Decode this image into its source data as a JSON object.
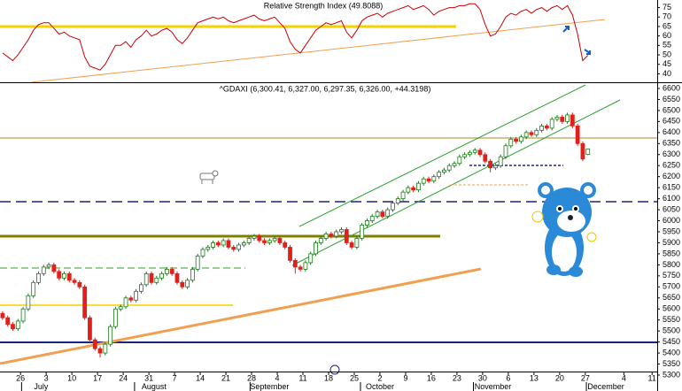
{
  "chart_data": [
    {
      "type": "line",
      "title": "Relative Strength Index (49.8088)",
      "xlim": [
        0,
        128
      ],
      "ylim": [
        36,
        79
      ],
      "yticks": [
        40,
        45,
        50,
        55,
        60,
        65,
        70,
        75
      ],
      "color": "#cc0000",
      "values": [
        51,
        49,
        47,
        50,
        54,
        58,
        63,
        66,
        67,
        67,
        64,
        61,
        62,
        60,
        59,
        58,
        49,
        44,
        43,
        42,
        45,
        50,
        55,
        55,
        57,
        54,
        58,
        60,
        63,
        60,
        61,
        63,
        64,
        62,
        58,
        56,
        59,
        63,
        67,
        68,
        69,
        70,
        69,
        70,
        68,
        67,
        68,
        69,
        70,
        71,
        69,
        68,
        69,
        70,
        67,
        64,
        57,
        53,
        51,
        55,
        59,
        63,
        65,
        67,
        66,
        67,
        68,
        62,
        59,
        63,
        68,
        70,
        71,
        72,
        70,
        72,
        73,
        74,
        75,
        76,
        74,
        75,
        76,
        74,
        71,
        73,
        74,
        75,
        75,
        76,
        76,
        77,
        77,
        74,
        66,
        60,
        61,
        65,
        70,
        72,
        71,
        73,
        74,
        72,
        74,
        75,
        73,
        75,
        76,
        74,
        76,
        71,
        61,
        47,
        49.8088
      ]
    },
    {
      "type": "candlestick",
      "title": "^GDAXI (6,300.41, 6,327.00, 6,297.35, 6,326.00, +44.3198)",
      "xlim": [
        0,
        128
      ],
      "ylim": [
        5276,
        6620
      ],
      "yticks": [
        6600,
        6550,
        6500,
        6450,
        6400,
        6350,
        6300,
        6250,
        6200,
        6150,
        6100,
        6050,
        6000,
        5950,
        5900,
        5850,
        5800,
        5750,
        5700,
        5650,
        5600,
        5550,
        5500,
        5450,
        5400,
        5350,
        5300
      ],
      "up_color": "#1d7a1d",
      "down_color": "#e0201b",
      "xticks": [
        {
          "value": 4,
          "label": "26"
        },
        {
          "value": 9,
          "label": "3"
        },
        {
          "value": 14,
          "label": "10"
        },
        {
          "value": 19,
          "label": "17"
        },
        {
          "value": 24,
          "label": "24"
        },
        {
          "value": 29,
          "label": "31"
        },
        {
          "value": 34,
          "label": "7"
        },
        {
          "value": 39,
          "label": "14"
        },
        {
          "value": 44,
          "label": "21"
        },
        {
          "value": 49,
          "label": "28"
        },
        {
          "value": 54,
          "label": "4"
        },
        {
          "value": 59,
          "label": "11"
        },
        {
          "value": 64,
          "label": "18"
        },
        {
          "value": 69,
          "label": "25"
        },
        {
          "value": 74,
          "label": "2"
        },
        {
          "value": 79,
          "label": "9"
        },
        {
          "value": 84,
          "label": "16"
        },
        {
          "value": 89,
          "label": "23"
        },
        {
          "value": 94,
          "label": "30"
        },
        {
          "value": 99,
          "label": "6"
        },
        {
          "value": 104,
          "label": "13"
        },
        {
          "value": 109,
          "label": "20"
        },
        {
          "value": 114,
          "label": "27"
        },
        {
          "value": 121.5,
          "label": "4"
        },
        {
          "value": 127,
          "label": "11"
        }
      ],
      "month_ticks": [
        {
          "value": 8,
          "label": "July"
        },
        {
          "value": 30,
          "label": "August"
        },
        {
          "value": 52.5,
          "label": "September"
        },
        {
          "value": 74,
          "label": "October"
        },
        {
          "value": 96,
          "label": "November"
        },
        {
          "value": 118,
          "label": "December"
        }
      ],
      "open": [
        5580,
        5560,
        5530,
        5510,
        5545,
        5600,
        5660,
        5720,
        5760,
        5790,
        5800,
        5770,
        5740,
        5760,
        5730,
        5720,
        5700,
        5560,
        5460,
        5420,
        5400,
        5440,
        5520,
        5600,
        5610,
        5650,
        5640,
        5680,
        5710,
        5760,
        5720,
        5740,
        5760,
        5780,
        5760,
        5720,
        5700,
        5730,
        5780,
        5840,
        5870,
        5880,
        5900,
        5890,
        5910,
        5880,
        5870,
        5890,
        5900,
        5920,
        5930,
        5910,
        5900,
        5910,
        5920,
        5900,
        5880,
        5820,
        5790,
        5780,
        5810,
        5850,
        5900,
        5920,
        5940,
        5930,
        5950,
        5960,
        5900,
        5880,
        5920,
        5980,
        6000,
        6020,
        6040,
        6020,
        6050,
        6080,
        6100,
        6130,
        6150,
        6140,
        6170,
        6190,
        6180,
        6200,
        6220,
        6230,
        6250,
        6260,
        6290,
        6300,
        6310,
        6320,
        6300,
        6270,
        6240,
        6250,
        6290,
        6340,
        6370,
        6360,
        6380,
        6400,
        6390,
        6410,
        6430,
        6420,
        6460,
        6470,
        6450,
        6480,
        6430,
        6350,
        6300.41
      ],
      "high": [
        5590,
        5570,
        5540,
        5555,
        5610,
        5670,
        5730,
        5770,
        5800,
        5810,
        5810,
        5780,
        5770,
        5770,
        5740,
        5730,
        5710,
        5570,
        5470,
        5430,
        5450,
        5530,
        5610,
        5620,
        5660,
        5660,
        5690,
        5720,
        5770,
        5770,
        5750,
        5770,
        5790,
        5790,
        5770,
        5730,
        5740,
        5790,
        5850,
        5880,
        5890,
        5910,
        5910,
        5920,
        5920,
        5890,
        5900,
        5910,
        5930,
        5940,
        5940,
        5920,
        5920,
        5930,
        5930,
        5910,
        5890,
        5830,
        5800,
        5820,
        5860,
        5910,
        5930,
        5950,
        5950,
        5960,
        5970,
        5970,
        5910,
        5930,
        5990,
        6010,
        6030,
        6050,
        6050,
        6060,
        6090,
        6110,
        6140,
        6160,
        6160,
        6180,
        6200,
        6200,
        6210,
        6230,
        6240,
        6260,
        6270,
        6300,
        6310,
        6320,
        6330,
        6330,
        6310,
        6280,
        6260,
        6300,
        6350,
        6380,
        6380,
        6390,
        6410,
        6410,
        6420,
        6440,
        6440,
        6470,
        6480,
        6480,
        6490,
        6490,
        6440,
        6360,
        6327
      ],
      "low": [
        5550,
        5520,
        5500,
        5500,
        5535,
        5590,
        5650,
        5710,
        5750,
        5780,
        5760,
        5730,
        5730,
        5720,
        5710,
        5690,
        5550,
        5450,
        5410,
        5380,
        5390,
        5430,
        5510,
        5590,
        5600,
        5630,
        5630,
        5670,
        5700,
        5710,
        5710,
        5730,
        5750,
        5750,
        5710,
        5690,
        5690,
        5720,
        5770,
        5830,
        5860,
        5870,
        5880,
        5880,
        5870,
        5860,
        5860,
        5880,
        5890,
        5910,
        5900,
        5890,
        5890,
        5900,
        5890,
        5870,
        5810,
        5760,
        5770,
        5770,
        5800,
        5840,
        5890,
        5910,
        5920,
        5920,
        5940,
        5890,
        5870,
        5870,
        5910,
        5970,
        5990,
        6010,
        6010,
        6010,
        6040,
        6070,
        6090,
        6120,
        6130,
        6130,
        6160,
        6170,
        6170,
        6190,
        6210,
        6220,
        6240,
        6250,
        6280,
        6290,
        6300,
        6290,
        6260,
        6220,
        6230,
        6240,
        6280,
        6330,
        6350,
        6350,
        6370,
        6380,
        6380,
        6400,
        6410,
        6410,
        6450,
        6440,
        6440,
        6420,
        6340,
        6270,
        6297.35
      ],
      "close": [
        5560,
        5530,
        5510,
        5545,
        5600,
        5660,
        5720,
        5760,
        5790,
        5800,
        5770,
        5740,
        5760,
        5730,
        5720,
        5700,
        5560,
        5460,
        5420,
        5400,
        5440,
        5520,
        5600,
        5610,
        5650,
        5640,
        5680,
        5710,
        5760,
        5720,
        5740,
        5760,
        5780,
        5760,
        5720,
        5700,
        5730,
        5780,
        5840,
        5870,
        5880,
        5900,
        5890,
        5910,
        5880,
        5870,
        5890,
        5900,
        5920,
        5930,
        5910,
        5900,
        5910,
        5920,
        5900,
        5880,
        5820,
        5790,
        5780,
        5810,
        5850,
        5900,
        5920,
        5940,
        5930,
        5950,
        5960,
        5900,
        5880,
        5920,
        5980,
        6000,
        6020,
        6040,
        6020,
        6050,
        6080,
        6100,
        6130,
        6150,
        6140,
        6170,
        6190,
        6180,
        6200,
        6220,
        6230,
        6250,
        6260,
        6290,
        6300,
        6310,
        6320,
        6300,
        6270,
        6240,
        6250,
        6290,
        6340,
        6370,
        6360,
        6380,
        6400,
        6390,
        6410,
        6430,
        6420,
        6460,
        6470,
        6450,
        6480,
        6430,
        6350,
        6280,
        6326
      ]
    }
  ]
}
